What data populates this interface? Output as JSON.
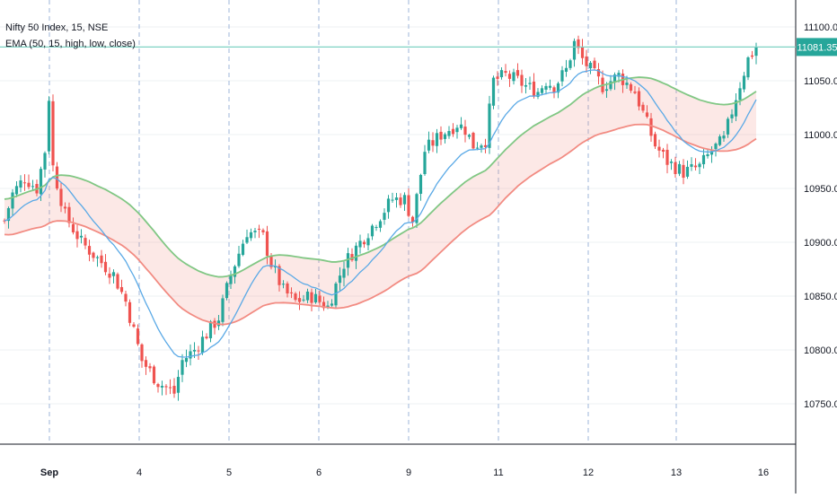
{
  "legend": {
    "title": "Nifty 50 Index, 15, NSE",
    "indicator": "EMA (50, 15, high, low, close)"
  },
  "price_label": "11081.35",
  "colors": {
    "up": "#26a69a",
    "down": "#ef5350",
    "ema_fast": "#5aa9e6",
    "band_high": "#81c784",
    "band_low": "#f28b82",
    "band_fill_up": "rgba(129,199,132,0.18)",
    "band_fill_down": "rgba(242,139,130,0.20)",
    "price_line": "#7fd1c4",
    "grid": "#eef0f3",
    "session": "#9db4d9",
    "axis_text": "#131722"
  },
  "chart_data": {
    "type": "candlestick",
    "ylim": [
      10720,
      11120
    ],
    "y_ticks": [
      "10750.00",
      "10800.00",
      "10850.00",
      "10900.00",
      "10950.00",
      "11000.00",
      "11050.00",
      "11100.00"
    ],
    "x_ticks": [
      "Sep",
      "4",
      "5",
      "6",
      "9",
      "11",
      "12",
      "13",
      "16"
    ],
    "last_price": 11081.35,
    "series": [
      {
        "name": "EMA 15 close",
        "values": []
      },
      {
        "name": "EMA 50 high",
        "values": []
      },
      {
        "name": "EMA 50 low",
        "values": []
      }
    ],
    "session_path": [
      [
        0,
        10920
      ],
      [
        2,
        10945
      ],
      [
        5,
        10960
      ],
      [
        8,
        10950
      ],
      [
        10,
        10985
      ],
      [
        11,
        11035
      ],
      [
        12,
        10970
      ],
      [
        15,
        10925
      ],
      [
        19,
        10900
      ],
      [
        23,
        10885
      ],
      [
        27,
        10870
      ],
      [
        30,
        10845
      ],
      [
        34,
        10790
      ],
      [
        38,
        10770
      ],
      [
        42,
        10760
      ],
      [
        44,
        10790
      ],
      [
        47,
        10800
      ],
      [
        50,
        10815
      ],
      [
        53,
        10830
      ],
      [
        56,
        10870
      ],
      [
        60,
        10910
      ],
      [
        64,
        10905
      ],
      [
        66,
        10880
      ],
      [
        69,
        10855
      ],
      [
        72,
        10845
      ],
      [
        76,
        10850
      ],
      [
        80,
        10840
      ],
      [
        84,
        10880
      ],
      [
        88,
        10900
      ],
      [
        92,
        10920
      ],
      [
        96,
        10940
      ],
      [
        99,
        10940
      ],
      [
        101,
        10920
      ],
      [
        104,
        10985
      ],
      [
        108,
        11000
      ],
      [
        112,
        11010
      ],
      [
        114,
        11005
      ],
      [
        116,
        10990
      ],
      [
        119,
        10995
      ],
      [
        121,
        11050
      ],
      [
        124,
        11055
      ],
      [
        127,
        11050
      ],
      [
        129,
        11045
      ],
      [
        132,
        11040
      ],
      [
        134,
        11050
      ],
      [
        136,
        11045
      ],
      [
        139,
        11060
      ],
      [
        141,
        11085
      ],
      [
        143,
        11070
      ],
      [
        146,
        11055
      ],
      [
        148,
        11045
      ],
      [
        150,
        11050
      ],
      [
        152,
        11055
      ],
      [
        156,
        11040
      ],
      [
        158,
        11020
      ],
      [
        161,
        10990
      ],
      [
        164,
        10975
      ],
      [
        168,
        10965
      ],
      [
        172,
        10970
      ],
      [
        175,
        10985
      ],
      [
        178,
        10995
      ],
      [
        181,
        11035
      ],
      [
        184,
        11070
      ],
      [
        186,
        11081
      ]
    ]
  }
}
